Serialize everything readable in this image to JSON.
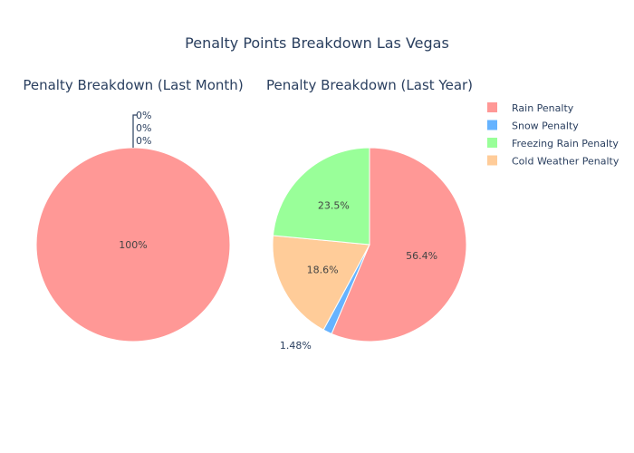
{
  "chart_data": {
    "title": "Penalty Points Breakdown Las Vegas",
    "legend_position": "top-right",
    "categories": [
      "Rain Penalty",
      "Snow Penalty",
      "Freezing Rain Penalty",
      "Cold Weather Penalty"
    ],
    "colors": {
      "Rain Penalty": "#ff9896",
      "Snow Penalty": "#66b3ff",
      "Freezing Rain Penalty": "#99ff99",
      "Cold Weather Penalty": "#ffcc99"
    },
    "pies": [
      {
        "type": "pie",
        "title": "Penalty Breakdown (Last Month)",
        "slices": [
          {
            "label": "Rain Penalty",
            "percent": 100,
            "text": "100%"
          },
          {
            "label": "Snow Penalty",
            "percent": 0,
            "text": "0%"
          },
          {
            "label": "Freezing Rain Penalty",
            "percent": 0,
            "text": "0%"
          },
          {
            "label": "Cold Weather Penalty",
            "percent": 0,
            "text": "0%"
          }
        ]
      },
      {
        "type": "pie",
        "title": "Penalty Breakdown (Last Year)",
        "slices": [
          {
            "label": "Rain Penalty",
            "percent": 56.4,
            "text": "56.4%"
          },
          {
            "label": "Snow Penalty",
            "percent": 1.48,
            "text": "1.48%"
          },
          {
            "label": "Cold Weather Penalty",
            "percent": 18.6,
            "text": "18.6%"
          },
          {
            "label": "Freezing Rain Penalty",
            "percent": 23.5,
            "text": "23.5%"
          }
        ]
      }
    ]
  }
}
